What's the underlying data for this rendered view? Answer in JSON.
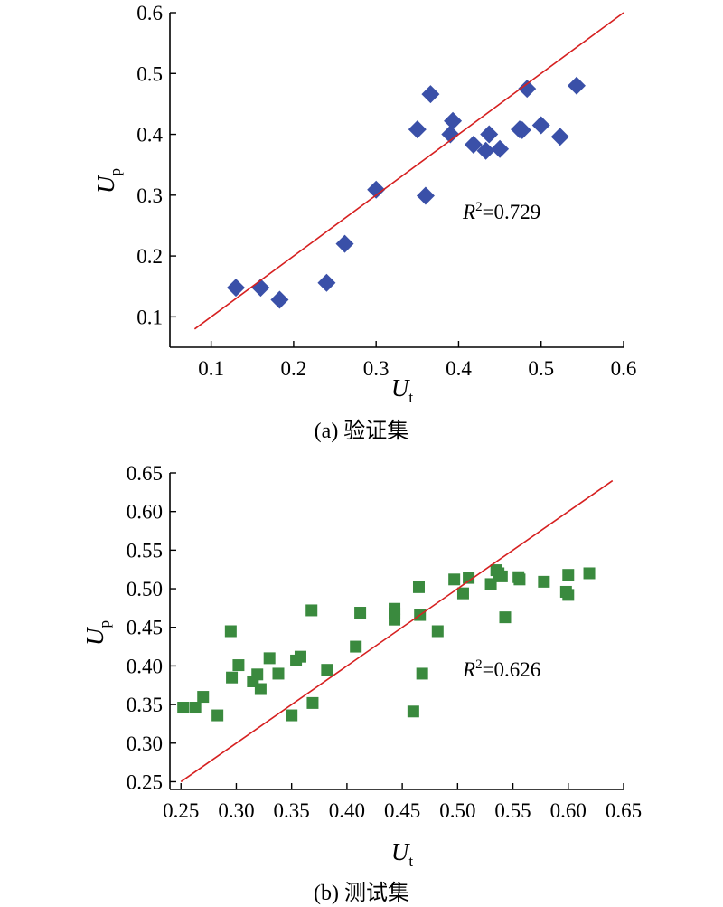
{
  "chart_data": [
    {
      "type": "scatter",
      "caption": "(a) 验证集",
      "xlabel": "U",
      "xlabel_sub": "t",
      "ylabel": "U",
      "ylabel_sub": "p",
      "xlim": [
        0.05,
        0.6
      ],
      "ylim": [
        0.05,
        0.6
      ],
      "xticks": [
        0.1,
        0.2,
        0.3,
        0.4,
        0.5,
        0.6
      ],
      "yticks": [
        0.1,
        0.2,
        0.3,
        0.4,
        0.5,
        0.6
      ],
      "xtick_labels": [
        "0.1",
        "0.2",
        "0.3",
        "0.4",
        "0.5",
        "0.6"
      ],
      "ytick_labels": [
        "0.1",
        "0.2",
        "0.3",
        "0.4",
        "0.5",
        "0.6"
      ],
      "r2_label": "R",
      "r2_sup": "2",
      "r2_value": "=0.729",
      "marker": "diamond",
      "marker_color": "#3a50a8",
      "line": {
        "x": [
          0.08,
          0.6
        ],
        "y": [
          0.08,
          0.6
        ],
        "color": "#d62020"
      },
      "x": [
        0.13,
        0.16,
        0.183,
        0.24,
        0.262,
        0.3,
        0.35,
        0.36,
        0.366,
        0.39,
        0.393,
        0.418,
        0.433,
        0.437,
        0.45,
        0.474,
        0.477,
        0.483,
        0.5,
        0.523,
        0.543
      ],
      "y": [
        0.148,
        0.148,
        0.128,
        0.156,
        0.22,
        0.309,
        0.408,
        0.299,
        0.466,
        0.4,
        0.422,
        0.383,
        0.373,
        0.4,
        0.376,
        0.408,
        0.407,
        0.475,
        0.415,
        0.396,
        0.48
      ]
    },
    {
      "type": "scatter",
      "caption": "(b) 测试集",
      "xlabel": "U",
      "xlabel_sub": "t",
      "ylabel": "U",
      "ylabel_sub": "p",
      "xlim": [
        0.24,
        0.65
      ],
      "ylim": [
        0.24,
        0.65
      ],
      "xticks": [
        0.25,
        0.3,
        0.35,
        0.4,
        0.45,
        0.5,
        0.55,
        0.6,
        0.65
      ],
      "yticks": [
        0.25,
        0.3,
        0.35,
        0.4,
        0.45,
        0.5,
        0.55,
        0.6,
        0.65
      ],
      "xtick_labels": [
        "0.25",
        "0.30",
        "0.35",
        "0.40",
        "0.45",
        "0.50",
        "0.55",
        "0.60",
        "0.65"
      ],
      "ytick_labels": [
        "0.25",
        "0.30",
        "0.35",
        "0.40",
        "0.45",
        "0.50",
        "0.55",
        "0.60",
        "0.65"
      ],
      "r2_label": "R",
      "r2_sup": "2",
      "r2_value": "=0.626",
      "marker": "square",
      "marker_color": "#3a8a3e",
      "line": {
        "x": [
          0.25,
          0.64
        ],
        "y": [
          0.25,
          0.64
        ],
        "color": "#d62020"
      },
      "x": [
        0.252,
        0.263,
        0.27,
        0.283,
        0.295,
        0.296,
        0.302,
        0.315,
        0.319,
        0.322,
        0.33,
        0.338,
        0.35,
        0.354,
        0.358,
        0.368,
        0.369,
        0.382,
        0.408,
        0.412,
        0.443,
        0.443,
        0.443,
        0.46,
        0.465,
        0.466,
        0.468,
        0.482,
        0.497,
        0.505,
        0.51,
        0.53,
        0.535,
        0.537,
        0.54,
        0.543,
        0.555,
        0.556,
        0.578,
        0.598,
        0.6,
        0.6,
        0.619
      ],
      "y": [
        0.346,
        0.346,
        0.36,
        0.336,
        0.445,
        0.385,
        0.401,
        0.38,
        0.389,
        0.37,
        0.41,
        0.39,
        0.336,
        0.407,
        0.412,
        0.472,
        0.352,
        0.395,
        0.425,
        0.469,
        0.474,
        0.468,
        0.46,
        0.341,
        0.502,
        0.466,
        0.39,
        0.445,
        0.512,
        0.494,
        0.514,
        0.506,
        0.524,
        0.52,
        0.516,
        0.463,
        0.515,
        0.512,
        0.509,
        0.496,
        0.492,
        0.518,
        0.52
      ]
    }
  ]
}
